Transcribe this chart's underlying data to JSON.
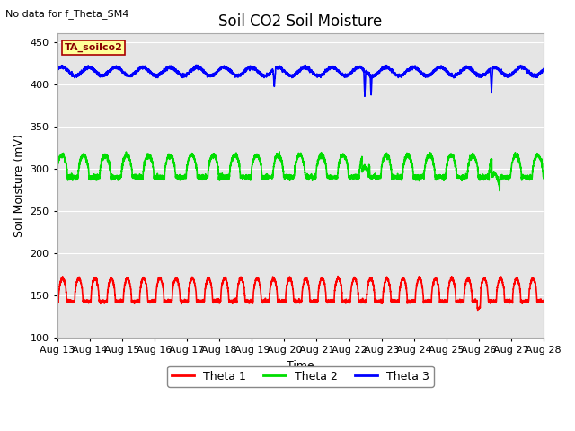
{
  "title": "Soil CO2 Soil Moisture",
  "top_left_text": "No data for f_Theta_SM4",
  "legend_box_text": "TA_soilco2",
  "ylabel": "Soil Moisture (mV)",
  "xlabel": "Time",
  "ylim": [
    100,
    460
  ],
  "xlim_days": [
    0,
    15
  ],
  "x_tick_labels": [
    "Aug 13",
    "Aug 14",
    "Aug 15",
    "Aug 16",
    "Aug 17",
    "Aug 18",
    "Aug 19",
    "Aug 20",
    "Aug 21",
    "Aug 22",
    "Aug 23",
    "Aug 24",
    "Aug 25",
    "Aug 26",
    "Aug 27",
    "Aug 28"
  ],
  "x_tick_positions": [
    0,
    1,
    2,
    3,
    4,
    5,
    6,
    7,
    8,
    9,
    10,
    11,
    12,
    13,
    14,
    15
  ],
  "theta1_base": 143,
  "theta1_peak": 170,
  "theta2_base": 290,
  "theta2_peak": 316,
  "theta3_base": 415,
  "theta3_ripple": 5,
  "color_theta1": "#ff0000",
  "color_theta2": "#00dd00",
  "color_theta3": "#0000ff",
  "legend_entries": [
    "Theta 1",
    "Theta 2",
    "Theta 3"
  ],
  "plot_bg_color": "#e5e5e5",
  "fig_bg_color": "#ffffff",
  "legend_box_bg": "#ffff99",
  "legend_box_edge": "#aa0000",
  "grid_color": "#ffffff",
  "linewidth": 1.2,
  "title_fontsize": 12,
  "axis_label_fontsize": 9,
  "tick_fontsize": 8
}
